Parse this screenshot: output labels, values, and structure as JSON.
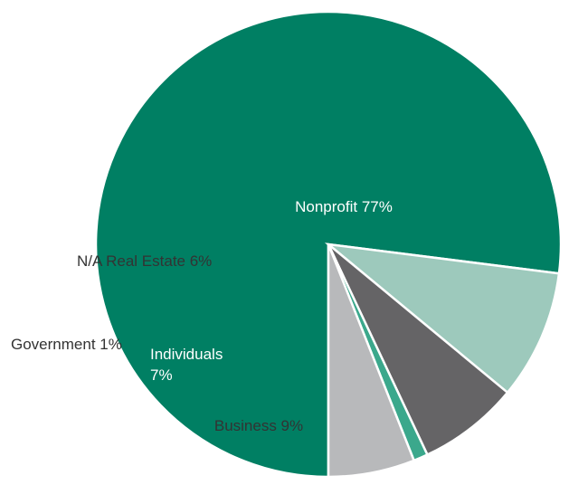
{
  "chart_data": {
    "type": "pie",
    "title": "",
    "slices": [
      {
        "name": "Nonprofit",
        "label": "Nonprofit 77%",
        "value": 77,
        "color": "#007F63",
        "text_color": "#ffffff"
      },
      {
        "name": "Business",
        "label": "Business 9%",
        "value": 9,
        "color": "#9DC9BC",
        "text_color": "#333333"
      },
      {
        "name": "Individuals",
        "label_lines": [
          "Individuals",
          "7%"
        ],
        "value": 7,
        "color": "#656466",
        "text_color": "#ffffff"
      },
      {
        "name": "Government",
        "label": "Government 1%",
        "value": 1,
        "color": "#3BA88C",
        "text_color": "#333333"
      },
      {
        "name": "N/A Real Estate",
        "label": "N/A Real Estate 6%",
        "value": 6,
        "color": "#B8B9BB",
        "text_color": "#333333"
      }
    ]
  }
}
